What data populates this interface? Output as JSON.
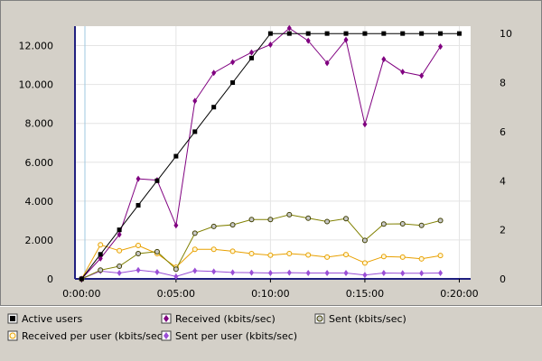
{
  "chart_data": {
    "type": "line",
    "x_ticks": [
      "0:00:00",
      "0:05:00",
      "0:10:00",
      "0:15:00",
      "0:20:00"
    ],
    "y_left_ticks": [
      "0",
      "2.000",
      "4.000",
      "6.000",
      "8.000",
      "10.000",
      "12.000"
    ],
    "y_left_range": [
      0,
      13000
    ],
    "y_right_ticks": [
      "0",
      "2",
      "4",
      "6",
      "8",
      "10"
    ],
    "y_right_range": [
      0,
      10.3
    ],
    "x_range_minutes": [
      -0.35,
      20.6
    ],
    "grid": true,
    "legend_position": "bottom",
    "series": [
      {
        "name": "Active users",
        "axis": "right",
        "color": "#000000",
        "marker": "square",
        "points": [
          [
            0,
            0
          ],
          [
            1,
            1
          ],
          [
            2,
            2
          ],
          [
            3,
            3
          ],
          [
            4,
            4
          ],
          [
            5,
            5
          ],
          [
            6,
            6
          ],
          [
            7,
            7
          ],
          [
            8,
            8
          ],
          [
            9,
            9
          ],
          [
            10,
            10
          ],
          [
            11,
            10
          ],
          [
            12,
            10
          ],
          [
            13,
            10
          ],
          [
            14,
            10
          ],
          [
            15,
            10
          ],
          [
            16,
            10
          ],
          [
            17,
            10
          ],
          [
            18,
            10
          ],
          [
            19,
            10
          ],
          [
            20,
            10
          ]
        ]
      },
      {
        "name": "Received (kbits/sec)",
        "axis": "left",
        "color": "#800080",
        "marker": "diamond",
        "points": [
          [
            0,
            0
          ],
          [
            1,
            1050
          ],
          [
            2,
            2280
          ],
          [
            3,
            5150
          ],
          [
            4,
            5080
          ],
          [
            5,
            2750
          ],
          [
            6,
            9150
          ],
          [
            7,
            10600
          ],
          [
            8,
            11150
          ],
          [
            9,
            11650
          ],
          [
            10,
            12050
          ],
          [
            11,
            12900
          ],
          [
            12,
            12250
          ],
          [
            13,
            11100
          ],
          [
            14,
            12300
          ],
          [
            15,
            7950
          ],
          [
            16,
            11300
          ],
          [
            17,
            10650
          ],
          [
            18,
            10450
          ],
          [
            19,
            11950
          ]
        ]
      },
      {
        "name": "Sent (kbits/sec)",
        "axis": "left",
        "color": "#808000",
        "marker": "circle-dark",
        "points": [
          [
            0,
            0
          ],
          [
            1,
            450
          ],
          [
            2,
            650
          ],
          [
            3,
            1300
          ],
          [
            4,
            1400
          ],
          [
            5,
            500
          ],
          [
            6,
            2350
          ],
          [
            7,
            2700
          ],
          [
            8,
            2780
          ],
          [
            9,
            3050
          ],
          [
            10,
            3050
          ],
          [
            11,
            3300
          ],
          [
            12,
            3120
          ],
          [
            13,
            2950
          ],
          [
            14,
            3100
          ],
          [
            15,
            1980
          ],
          [
            16,
            2820
          ],
          [
            17,
            2830
          ],
          [
            18,
            2750
          ],
          [
            19,
            3000
          ]
        ]
      },
      {
        "name": "Received per user (kbits/sec)",
        "axis": "left",
        "color": "#e8a000",
        "marker": "circle-light",
        "points": [
          [
            0,
            0
          ],
          [
            1,
            1750
          ],
          [
            2,
            1450
          ],
          [
            3,
            1720
          ],
          [
            4,
            1300
          ],
          [
            5,
            600
          ],
          [
            6,
            1520
          ],
          [
            7,
            1520
          ],
          [
            8,
            1420
          ],
          [
            9,
            1300
          ],
          [
            10,
            1220
          ],
          [
            11,
            1300
          ],
          [
            12,
            1230
          ],
          [
            13,
            1120
          ],
          [
            14,
            1250
          ],
          [
            15,
            820
          ],
          [
            16,
            1150
          ],
          [
            17,
            1120
          ],
          [
            18,
            1030
          ],
          [
            19,
            1200
          ]
        ]
      },
      {
        "name": "Sent per user (kbits/sec)",
        "axis": "left",
        "color": "#9a4ed6",
        "marker": "diamond",
        "points": [
          [
            0,
            0
          ],
          [
            1,
            400
          ],
          [
            2,
            300
          ],
          [
            3,
            450
          ],
          [
            4,
            350
          ],
          [
            5,
            120
          ],
          [
            6,
            420
          ],
          [
            7,
            380
          ],
          [
            8,
            330
          ],
          [
            9,
            320
          ],
          [
            10,
            300
          ],
          [
            11,
            320
          ],
          [
            12,
            300
          ],
          [
            13,
            300
          ],
          [
            14,
            300
          ],
          [
            15,
            200
          ],
          [
            16,
            300
          ],
          [
            17,
            290
          ],
          [
            18,
            290
          ],
          [
            19,
            300
          ]
        ]
      }
    ]
  }
}
